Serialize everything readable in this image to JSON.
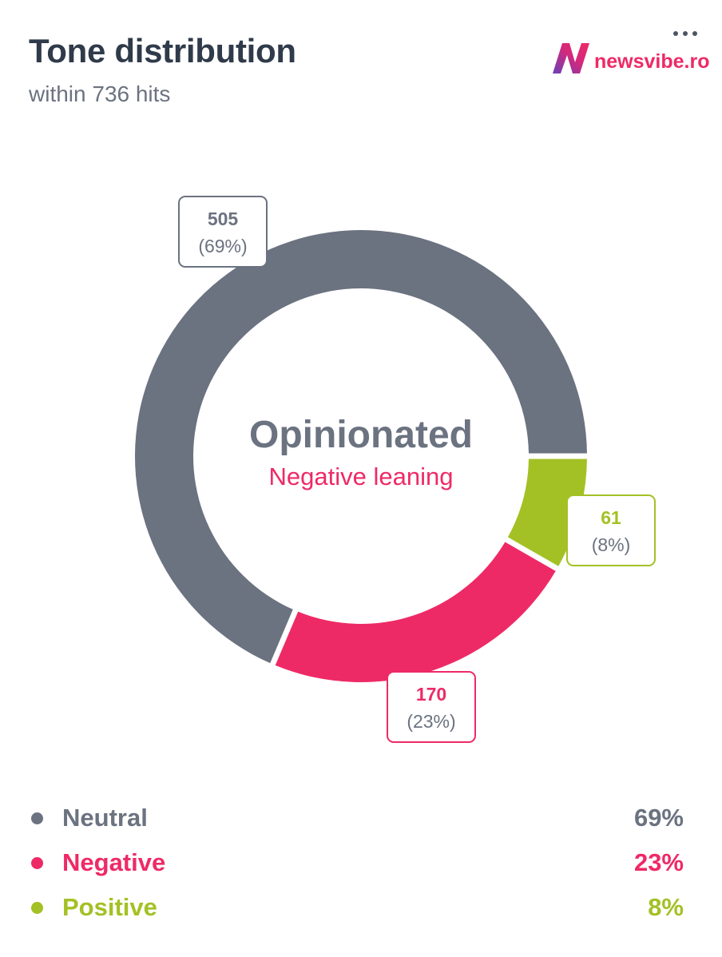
{
  "header": {
    "title": "Tone distribution",
    "subtitle": "within 736 hits"
  },
  "brand": {
    "name": "newsvibe.ro"
  },
  "center": {
    "main": "Opinionated",
    "sub": "Negative leaning"
  },
  "colors": {
    "neutral": "#6b7280",
    "negative": "#ee2a66",
    "positive": "#a3c124",
    "title": "#2f3a4a"
  },
  "chart_data": {
    "type": "pie",
    "total": 736,
    "slices": [
      {
        "name": "Neutral",
        "value": 505,
        "percent": "69%",
        "pct_label": "(69%)",
        "color": "#6b7280"
      },
      {
        "name": "Negative",
        "value": 170,
        "percent": "23%",
        "pct_label": "(23%)",
        "color": "#ee2a66"
      },
      {
        "name": "Positive",
        "value": 61,
        "percent": "8%",
        "pct_label": "(8%)",
        "color": "#a3c124"
      }
    ],
    "legend_position": "bottom"
  },
  "legend": [
    {
      "label": "Neutral",
      "value": "69%"
    },
    {
      "label": "Negative",
      "value": "23%"
    },
    {
      "label": "Positive",
      "value": "8%"
    }
  ]
}
